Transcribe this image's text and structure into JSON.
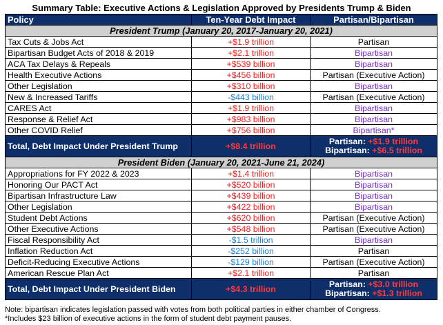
{
  "title": "Summary Table: Executive Actions & Legislation Approved by Presidents Trump & Biden",
  "columns": [
    "Policy",
    "Ten-Year Debt Impact",
    "Partisan/Bipartisan"
  ],
  "trump": {
    "header": "President Trump (January 20, 2017-January 20, 2021)",
    "rows": [
      {
        "policy": "Tax Cuts & Jobs Act",
        "impact": "+$1.9 trillion",
        "impact_color": "red",
        "type": "Partisan",
        "type_color": "black"
      },
      {
        "policy": "Bipartisan Budget Acts of 2018 & 2019",
        "impact": "+$2.1 trillion",
        "impact_color": "red",
        "type": "Bipartisan",
        "type_color": "purple"
      },
      {
        "policy": "ACA Tax Delays & Repeals",
        "impact": "+$539 billion",
        "impact_color": "red",
        "type": "Bipartisan",
        "type_color": "purple"
      },
      {
        "policy": "Health Executive Actions",
        "impact": "+$456 billion",
        "impact_color": "red",
        "type": "Partisan (Executive Action)",
        "type_color": "black"
      },
      {
        "policy": "Other Legislation",
        "impact": "+$310 billion",
        "impact_color": "red",
        "type": "Bipartisan",
        "type_color": "purple"
      },
      {
        "policy": "New & Increased Tariffs",
        "impact": "-$443 billion",
        "impact_color": "blue",
        "type": "Partisan (Executive Action)",
        "type_color": "black"
      },
      {
        "policy": "CARES Act",
        "impact": "+$1.9 trillion",
        "impact_color": "red",
        "type": "Bipartisan",
        "type_color": "purple"
      },
      {
        "policy": "Response & Relief Act",
        "impact": "+$983 billion",
        "impact_color": "red",
        "type": "Bipartisan",
        "type_color": "purple"
      },
      {
        "policy": "Other COVID Relief",
        "impact": "+$756 billion",
        "impact_color": "red",
        "type": "Bipartisan*",
        "type_color": "purple"
      }
    ],
    "total": {
      "label": "Total, Debt Impact Under President Trump",
      "value": "+$8.4 trillion",
      "partisan_label": "Partisan:",
      "partisan_value": "+$1.9 trillion",
      "bipartisan_label": "Bipartisan:",
      "bipartisan_value": "+$6.5 trillion"
    }
  },
  "biden": {
    "header": "President Biden (January 20, 2021-June 21, 2024)",
    "rows": [
      {
        "policy": "Appropriations for FY 2022 & 2023",
        "impact": "+$1.4 trillion",
        "impact_color": "red",
        "type": "Bipartisan",
        "type_color": "purple"
      },
      {
        "policy": "Honoring Our PACT Act",
        "impact": "+$520 billion",
        "impact_color": "red",
        "type": "Bipartisan",
        "type_color": "purple"
      },
      {
        "policy": "Bipartisan Infrastructure Law",
        "impact": "+$439 billion",
        "impact_color": "red",
        "type": "Bipartisan",
        "type_color": "purple"
      },
      {
        "policy": "Other Legislation",
        "impact": "+$422 billion",
        "impact_color": "red",
        "type": "Bipartisan",
        "type_color": "purple"
      },
      {
        "policy": "Student Debt Actions",
        "impact": "+$620 billion",
        "impact_color": "red",
        "type": "Partisan (Executive Action)",
        "type_color": "black"
      },
      {
        "policy": "Other Executive Actions",
        "impact": "+$548 billion",
        "impact_color": "red",
        "type": "Partisan (Executive Action)",
        "type_color": "black"
      },
      {
        "policy": "Fiscal Responsibility Act",
        "impact": "-$1.5 trillion",
        "impact_color": "blue",
        "type": "Bipartisan",
        "type_color": "purple"
      },
      {
        "policy": "Inflation Reduction Act",
        "impact": "-$252 billion",
        "impact_color": "blue",
        "type": "Partisan",
        "type_color": "black"
      },
      {
        "policy": "Deficit-Reducing Executive Actions",
        "impact": "-$129 billion",
        "impact_color": "blue",
        "type": "Partisan (Executive Action)",
        "type_color": "black"
      },
      {
        "policy": "American Rescue Plan Act",
        "impact": "+$2.1 trillion",
        "impact_color": "red",
        "type": "Partisan",
        "type_color": "black"
      }
    ],
    "total": {
      "label": "Total, Debt Impact Under President Biden",
      "value": "+$4.3 trillion",
      "partisan_label": "Partisan:",
      "partisan_value": "+$3.0 trillion",
      "bipartisan_label": "Bipartisan:",
      "bipartisan_value": "+$1.3 trillion"
    }
  },
  "notes": [
    "Note: bipartisan indicates legislation passed with votes from both political parties in either chamber of Congress.",
    "*Includes $23 billion of executive actions in the form of student debt payment pauses."
  ],
  "colors": {
    "header_bg": "#0f2f6b",
    "section_bg": "#cfcfcf",
    "increase": "#ff1a1a",
    "decrease": "#1f7fd6",
    "bipartisan": "#7b2dd6"
  }
}
